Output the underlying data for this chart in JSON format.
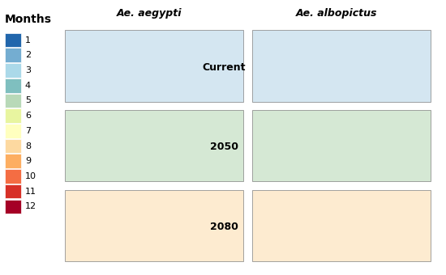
{
  "title_left": "Ae. aegypti",
  "title_right": "Ae. albopictus",
  "row_labels": [
    "Current",
    "2050",
    "2080"
  ],
  "legend_title": "Months",
  "legend_values": [
    1,
    2,
    3,
    4,
    5,
    6,
    7,
    8,
    9,
    10,
    11,
    12
  ],
  "legend_colors": [
    "#2166ac",
    "#74add1",
    "#abd9e9",
    "#7fbfbf",
    "#b8d9b8",
    "#e8f5a0",
    "#ffffbf",
    "#fdd9a0",
    "#fdae61",
    "#f46d43",
    "#d73027",
    "#a50026"
  ],
  "background_color": "#ffffff",
  "land_color": "#d0d0d0",
  "ocean_color": "#ffffff",
  "text_color": "#000000",
  "title_fontsize": 9,
  "label_fontsize": 9,
  "legend_fontsize": 8,
  "fig_width": 5.5,
  "fig_height": 3.4,
  "dpi": 100
}
